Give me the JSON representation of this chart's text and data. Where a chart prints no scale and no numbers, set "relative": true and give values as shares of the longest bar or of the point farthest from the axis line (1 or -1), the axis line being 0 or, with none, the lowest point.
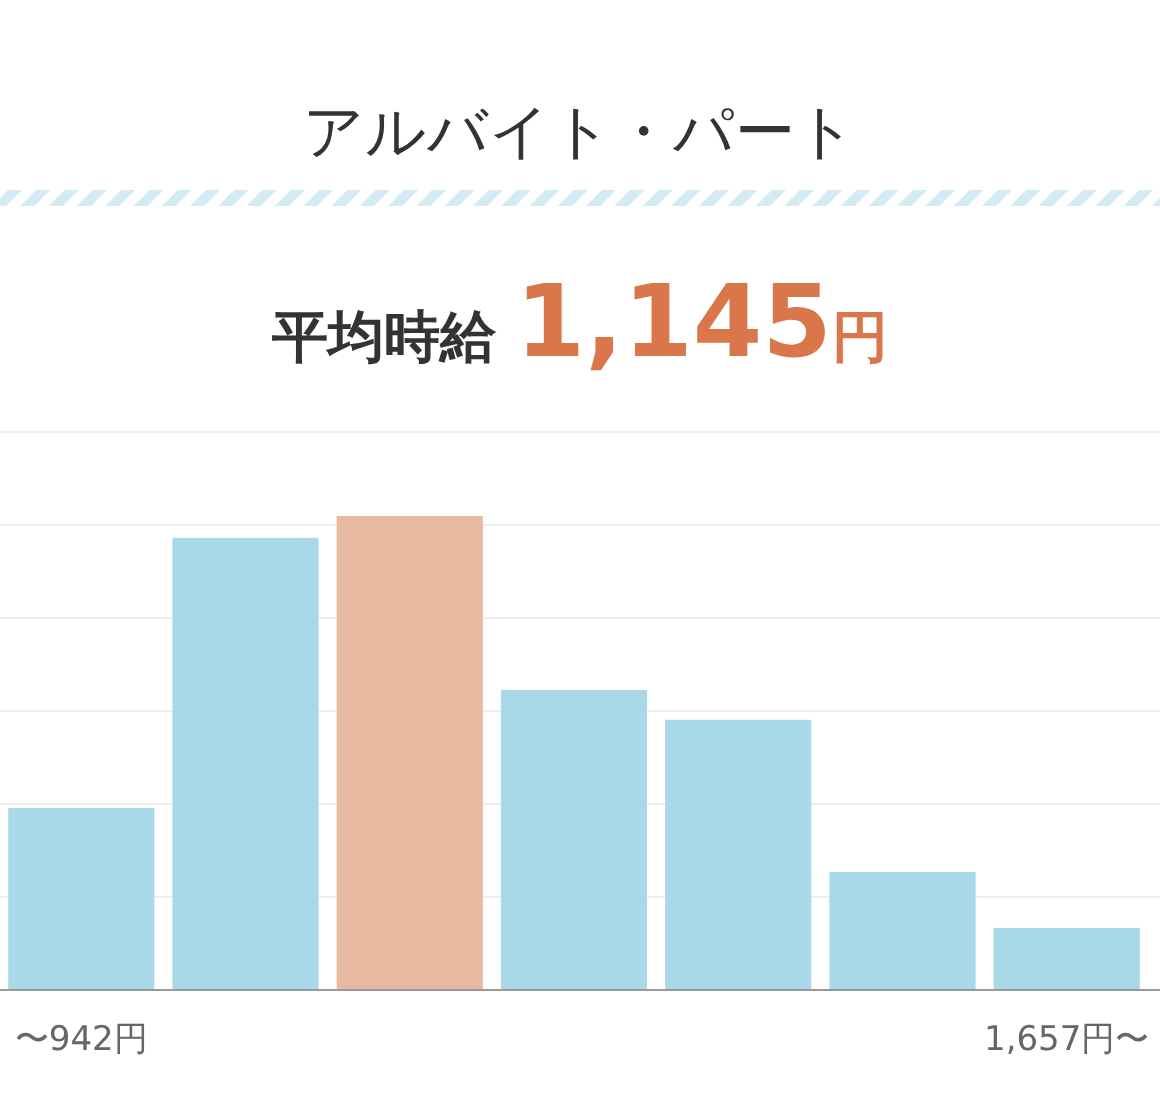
{
  "chart_data": {
    "type": "bar",
    "title": "アルバイト・パート",
    "subtitle": "平均時給 1,145円",
    "categories": [
      "〜942円",
      null,
      null,
      null,
      null,
      null,
      "1,657円〜"
    ],
    "values": [
      0.384,
      0.954,
      1,
      0.633,
      0.57,
      0.249,
      0.131
    ],
    "colors": [
      "#a9d8e8",
      "#a9d8e8",
      "#e8b8a0",
      "#a9d8e8",
      "#a9d8e8",
      "#a9d8e8",
      "#a9d8e8"
    ],
    "relative": true,
    "grid": "y"
  }
}
